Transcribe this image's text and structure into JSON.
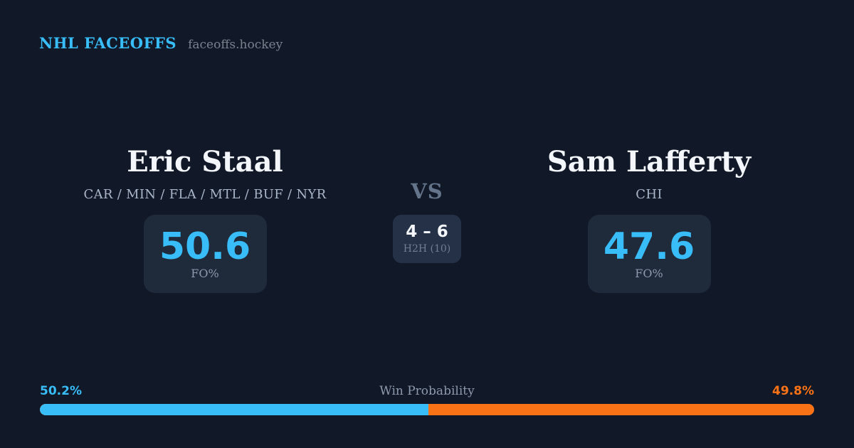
{
  "header": {
    "brand": "NHL FACEOFFS",
    "site": "faceoffs.hockey"
  },
  "matchup": {
    "vs_label": "VS",
    "player_left": {
      "name": "Eric Staal",
      "teams": "CAR / MIN / FLA / MTL / BUF / NYR",
      "fo_value": "50.6",
      "fo_label": "FO%"
    },
    "player_right": {
      "name": "Sam Lafferty",
      "teams": "CHI",
      "fo_value": "47.6",
      "fo_label": "FO%"
    },
    "h2h": {
      "score": "4 – 6",
      "label": "H2H (10)"
    }
  },
  "win_probability": {
    "label": "Win Probability",
    "left_pct": "50.2%",
    "right_pct": "49.8%",
    "left_value": 50.2,
    "right_value": 49.8
  },
  "colors": {
    "background": "#111827",
    "panel": "#1f2a3b",
    "panel_mid": "#243146",
    "accent_blue": "#38bdf8",
    "accent_orange": "#f97316",
    "text_white": "#f3f6fa",
    "text_slate": "#8d99ac"
  }
}
